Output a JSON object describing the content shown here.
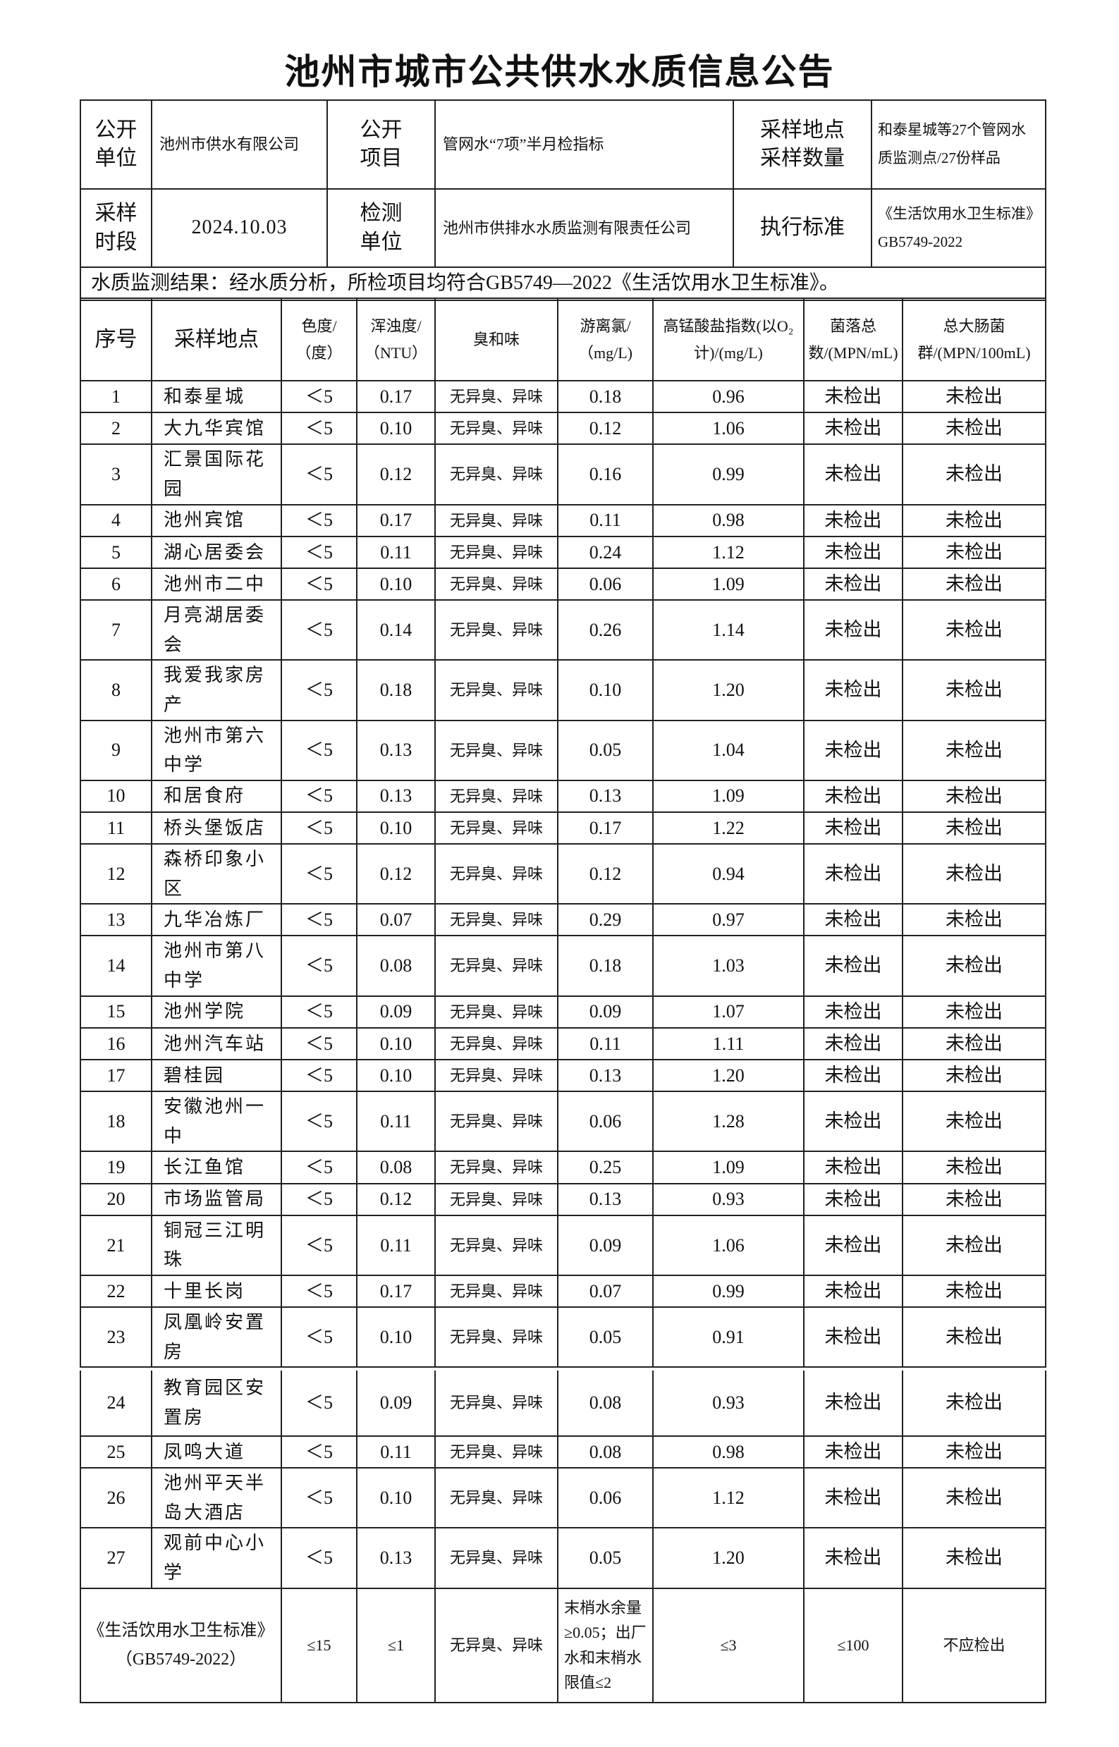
{
  "title": "池州市城市公共供水水质信息公告",
  "info": {
    "publish_unit_label": "公开\n单位",
    "publish_unit": "池州市供水有限公司",
    "publish_item_label": "公开\n项目",
    "publish_item": "管网水“7项”半月检指标",
    "sampling_site_label": "采样地点\n采样数量",
    "sampling_site": "和泰星城等27个管网水质监测点/27份样品",
    "sampling_period_label": "采样\n时段",
    "sampling_period": "2024.10.03",
    "testing_unit_label": "检测\n单位",
    "testing_unit": "池州市供排水水质监测有限责任公司",
    "standard_label": "执行标准",
    "standard": "《生活饮用水卫生标准》GB5749-2022",
    "summary": "水质监测结果：经水质分析，所检项目均符合GB5749—2022《生活饮用水卫生标准》。"
  },
  "columns": [
    "序号",
    "采样地点",
    "色度/（度）",
    "浑浊度/（NTU）",
    "臭和味",
    "游离氯/（mg/L)",
    "高锰酸盐指数(以O₂计)/(mg/L)",
    "菌落总数/(MPN/mL)",
    "总大肠菌群/(MPN/100mL)"
  ],
  "rows": [
    [
      "1",
      "和泰星城",
      "＜5",
      "0.17",
      "无异臭、异味",
      "0.18",
      "0.96",
      "未检出",
      "未检出"
    ],
    [
      "2",
      "大九华宾馆",
      "＜5",
      "0.10",
      "无异臭、异味",
      "0.12",
      "1.06",
      "未检出",
      "未检出"
    ],
    [
      "3",
      "汇景国际花园",
      "＜5",
      "0.12",
      "无异臭、异味",
      "0.16",
      "0.99",
      "未检出",
      "未检出"
    ],
    [
      "4",
      "池州宾馆",
      "＜5",
      "0.17",
      "无异臭、异味",
      "0.11",
      "0.98",
      "未检出",
      "未检出"
    ],
    [
      "5",
      "湖心居委会",
      "＜5",
      "0.11",
      "无异臭、异味",
      "0.24",
      "1.12",
      "未检出",
      "未检出"
    ],
    [
      "6",
      "池州市二中",
      "＜5",
      "0.10",
      "无异臭、异味",
      "0.06",
      "1.09",
      "未检出",
      "未检出"
    ],
    [
      "7",
      "月亮湖居委会",
      "＜5",
      "0.14",
      "无异臭、异味",
      "0.26",
      "1.14",
      "未检出",
      "未检出"
    ],
    [
      "8",
      "我爱我家房产",
      "＜5",
      "0.18",
      "无异臭、异味",
      "0.10",
      "1.20",
      "未检出",
      "未检出"
    ],
    [
      "9",
      "池州市第六中学",
      "＜5",
      "0.13",
      "无异臭、异味",
      "0.05",
      "1.04",
      "未检出",
      "未检出"
    ],
    [
      "10",
      "和居食府",
      "＜5",
      "0.13",
      "无异臭、异味",
      "0.13",
      "1.09",
      "未检出",
      "未检出"
    ],
    [
      "11",
      "桥头堡饭店",
      "＜5",
      "0.10",
      "无异臭、异味",
      "0.17",
      "1.22",
      "未检出",
      "未检出"
    ],
    [
      "12",
      "森桥印象小区",
      "＜5",
      "0.12",
      "无异臭、异味",
      "0.12",
      "0.94",
      "未检出",
      "未检出"
    ],
    [
      "13",
      "九华冶炼厂",
      "＜5",
      "0.07",
      "无异臭、异味",
      "0.29",
      "0.97",
      "未检出",
      "未检出"
    ],
    [
      "14",
      "池州市第八中学",
      "＜5",
      "0.08",
      "无异臭、异味",
      "0.18",
      "1.03",
      "未检出",
      "未检出"
    ],
    [
      "15",
      "池州学院",
      "＜5",
      "0.09",
      "无异臭、异味",
      "0.09",
      "1.07",
      "未检出",
      "未检出"
    ],
    [
      "16",
      "池州汽车站",
      "＜5",
      "0.10",
      "无异臭、异味",
      "0.11",
      "1.11",
      "未检出",
      "未检出"
    ],
    [
      "17",
      "碧桂园",
      "＜5",
      "0.10",
      "无异臭、异味",
      "0.13",
      "1.20",
      "未检出",
      "未检出"
    ],
    [
      "18",
      "安徽池州一中",
      "＜5",
      "0.11",
      "无异臭、异味",
      "0.06",
      "1.28",
      "未检出",
      "未检出"
    ],
    [
      "19",
      "长江鱼馆",
      "＜5",
      "0.08",
      "无异臭、异味",
      "0.25",
      "1.09",
      "未检出",
      "未检出"
    ],
    [
      "20",
      "市场监管局",
      "＜5",
      "0.12",
      "无异臭、异味",
      "0.13",
      "0.93",
      "未检出",
      "未检出"
    ],
    [
      "21",
      "铜冠三江明珠",
      "＜5",
      "0.11",
      "无异臭、异味",
      "0.09",
      "1.06",
      "未检出",
      "未检出"
    ],
    [
      "22",
      "十里长岗",
      "＜5",
      "0.17",
      "无异臭、异味",
      "0.07",
      "0.99",
      "未检出",
      "未检出"
    ],
    [
      "23",
      "凤凰岭安置房",
      "＜5",
      "0.10",
      "无异臭、异味",
      "0.05",
      "0.91",
      "未检出",
      "未检出"
    ],
    [
      "24",
      "教育园区安置房",
      "＜5",
      "0.09",
      "无异臭、异味",
      "0.08",
      "0.93",
      "未检出",
      "未检出"
    ],
    [
      "25",
      "凤鸣大道",
      "＜5",
      "0.11",
      "无异臭、异味",
      "0.08",
      "0.98",
      "未检出",
      "未检出"
    ],
    [
      "26",
      "池州平天半岛大酒店",
      "＜5",
      "0.10",
      "无异臭、异味",
      "0.06",
      "1.12",
      "未检出",
      "未检出"
    ],
    [
      "27",
      "观前中心小学",
      "＜5",
      "0.13",
      "无异臭、异味",
      "0.05",
      "1.20",
      "未检出",
      "未检出"
    ]
  ],
  "standard_row": {
    "label": "《生活饮用水卫生标准》（GB5749-2022）",
    "color": "≤15",
    "turbidity": "≤1",
    "odor": "无异臭、异味",
    "chlorine": "末梢水余量≥0.05；出厂水和末梢水限值≤2",
    "permanganate": "≤3",
    "colony": "≤100",
    "coliform": "不应检出"
  }
}
